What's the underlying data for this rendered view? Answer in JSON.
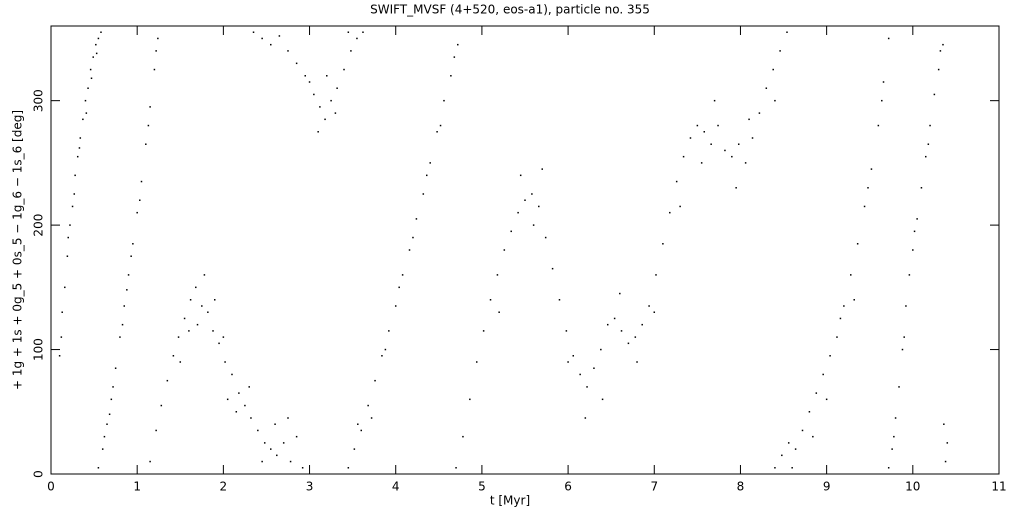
{
  "chart_data": {
    "type": "scatter",
    "title": "SWIFT_MVSF (4+520, eos-a1), particle no. 355",
    "x_label": "t [Myr]",
    "y_label": "+ 1g + 1s + 0g_5 + 0s_5 − 1g_6 − 1s_6 [deg]",
    "xlim": [
      0,
      11
    ],
    "xticks": [
      0,
      1,
      2,
      3,
      4,
      5,
      6,
      7,
      8,
      9,
      10,
      11
    ],
    "ylim": [
      0,
      360
    ],
    "yticks": [
      0,
      100,
      200,
      300
    ],
    "color": "#000000",
    "x": [
      0.1,
      0.13,
      0.16,
      0.19,
      0.22,
      0.25,
      0.28,
      0.31,
      0.34,
      0.37,
      0.4,
      0.43,
      0.46,
      0.49,
      0.52,
      0.55,
      0.58,
      0.12,
      0.2,
      0.27,
      0.33,
      0.41,
      0.47,
      0.53,
      0.55,
      0.6,
      0.65,
      0.7,
      0.75,
      0.8,
      0.85,
      0.9,
      0.95,
      1.0,
      1.05,
      1.1,
      1.15,
      1.2,
      1.24,
      0.62,
      0.72,
      0.83,
      0.93,
      1.03,
      1.13,
      1.22,
      0.68,
      0.88,
      1.15,
      1.22,
      1.28,
      1.35,
      1.42,
      1.48,
      1.55,
      1.62,
      1.68,
      1.75,
      1.82,
      1.88,
      1.95,
      2.02,
      2.1,
      2.18,
      2.25,
      2.32,
      2.4,
      2.48,
      2.55,
      2.62,
      2.7,
      2.78,
      2.85,
      2.92,
      1.6,
      1.7,
      1.78,
      1.9,
      2.0,
      2.15,
      2.3,
      2.45,
      2.6,
      2.75,
      1.5,
      2.05,
      2.35,
      2.45,
      2.55,
      2.65,
      2.75,
      2.85,
      2.95,
      3.05,
      3.12,
      3.18,
      3.25,
      3.32,
      3.4,
      3.48,
      3.55,
      3.62,
      3.0,
      3.1,
      3.2,
      3.3,
      3.45,
      3.45,
      3.52,
      3.6,
      3.68,
      3.76,
      3.84,
      3.92,
      4.0,
      4.08,
      4.16,
      4.24,
      4.32,
      4.4,
      4.48,
      4.56,
      4.64,
      4.72,
      3.56,
      3.72,
      3.88,
      4.04,
      4.2,
      4.36,
      4.52,
      4.68,
      4.7,
      4.78,
      4.86,
      4.94,
      5.02,
      5.1,
      5.18,
      5.26,
      5.34,
      5.42,
      5.5,
      5.58,
      5.66,
      5.74,
      5.82,
      5.9,
      5.98,
      6.06,
      6.14,
      6.22,
      6.3,
      6.38,
      6.46,
      6.54,
      6.62,
      6.7,
      6.78,
      6.86,
      6.94,
      7.02,
      7.1,
      7.18,
      7.26,
      7.34,
      7.42,
      7.5,
      7.58,
      7.66,
      7.74,
      7.82,
      7.9,
      7.98,
      8.06,
      8.14,
      8.22,
      8.3,
      8.38,
      8.46,
      8.54,
      5.2,
      5.45,
      5.6,
      5.7,
      6.0,
      6.2,
      6.4,
      6.6,
      6.8,
      7.0,
      7.3,
      7.55,
      7.7,
      7.95,
      8.1,
      8.4,
      8.4,
      8.48,
      8.56,
      8.64,
      8.72,
      8.8,
      8.88,
      8.96,
      9.04,
      9.12,
      9.2,
      9.28,
      9.36,
      9.44,
      9.52,
      9.6,
      9.66,
      9.72,
      8.6,
      8.84,
      9.0,
      9.16,
      9.32,
      9.48,
      9.64,
      9.72,
      9.76,
      9.8,
      9.84,
      9.88,
      9.92,
      9.96,
      10.0,
      10.05,
      10.1,
      10.15,
      10.2,
      10.25,
      10.3,
      10.35,
      9.78,
      9.9,
      10.02,
      10.18,
      10.32,
      10.38,
      10.4,
      10.36
    ],
    "values": [
      95,
      130,
      150,
      175,
      200,
      215,
      240,
      255,
      270,
      285,
      300,
      310,
      325,
      335,
      345,
      350,
      355,
      110,
      190,
      225,
      262,
      290,
      318,
      338,
      5,
      20,
      40,
      60,
      85,
      110,
      135,
      160,
      185,
      210,
      235,
      265,
      295,
      325,
      350,
      30,
      70,
      120,
      175,
      220,
      280,
      340,
      48,
      148,
      10,
      35,
      55,
      75,
      95,
      110,
      125,
      140,
      150,
      135,
      130,
      115,
      105,
      90,
      80,
      65,
      55,
      45,
      35,
      25,
      20,
      15,
      25,
      10,
      30,
      5,
      115,
      120,
      160,
      140,
      110,
      50,
      70,
      10,
      40,
      45,
      90,
      60,
      355,
      350,
      345,
      352,
      340,
      330,
      320,
      305,
      295,
      285,
      300,
      310,
      325,
      340,
      350,
      355,
      315,
      275,
      320,
      290,
      355,
      5,
      20,
      35,
      55,
      75,
      95,
      115,
      135,
      160,
      180,
      205,
      225,
      250,
      275,
      300,
      320,
      345,
      40,
      45,
      100,
      150,
      190,
      240,
      280,
      335,
      5,
      30,
      60,
      90,
      115,
      140,
      160,
      180,
      195,
      210,
      220,
      225,
      215,
      190,
      165,
      140,
      115,
      95,
      80,
      70,
      85,
      100,
      120,
      125,
      115,
      105,
      110,
      120,
      135,
      160,
      185,
      210,
      235,
      255,
      270,
      280,
      275,
      265,
      280,
      260,
      255,
      265,
      250,
      270,
      290,
      310,
      325,
      340,
      355,
      130,
      240,
      200,
      245,
      90,
      45,
      60,
      145,
      90,
      130,
      215,
      250,
      300,
      230,
      285,
      300,
      5,
      15,
      25,
      20,
      35,
      50,
      65,
      80,
      95,
      110,
      135,
      160,
      185,
      215,
      245,
      280,
      315,
      350,
      5,
      30,
      60,
      125,
      140,
      230,
      300,
      5,
      20,
      45,
      70,
      100,
      135,
      160,
      180,
      205,
      230,
      255,
      280,
      305,
      325,
      345,
      30,
      110,
      195,
      265,
      340,
      10,
      25,
      40
    ]
  }
}
